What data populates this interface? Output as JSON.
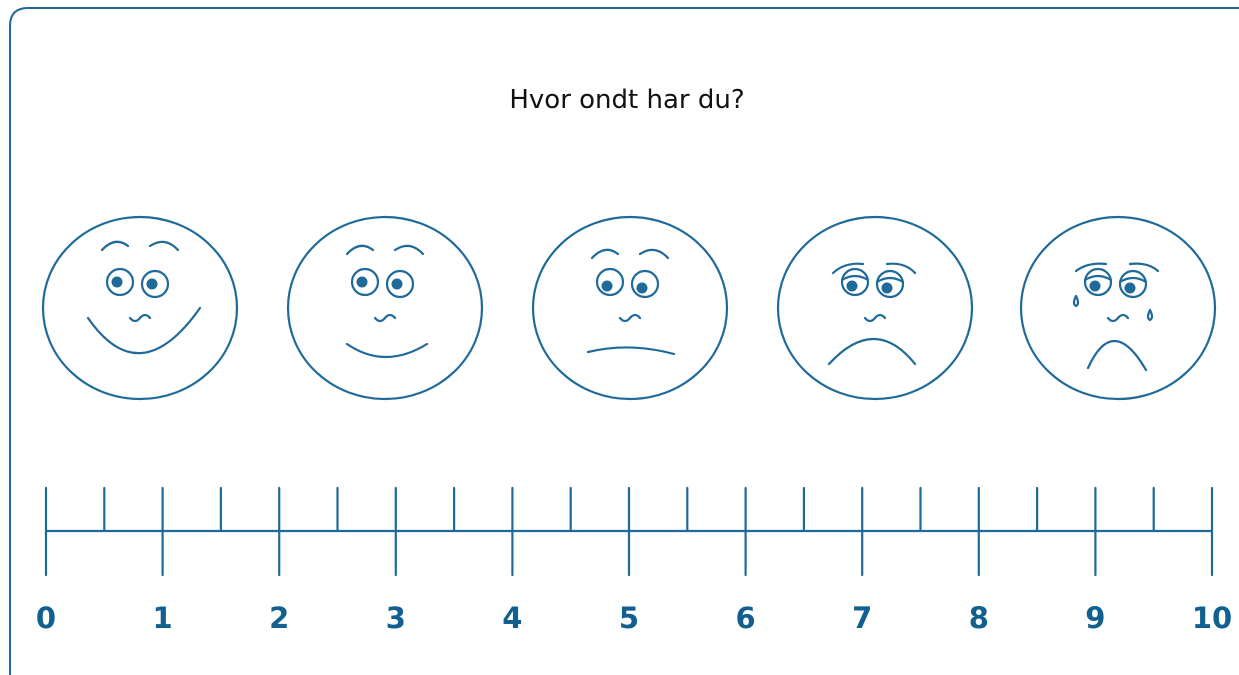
{
  "title": "Hvor ondt har du?",
  "scale": {
    "labels": [
      0,
      1,
      2,
      3,
      4,
      5,
      6,
      7,
      8,
      9,
      10
    ]
  }
}
